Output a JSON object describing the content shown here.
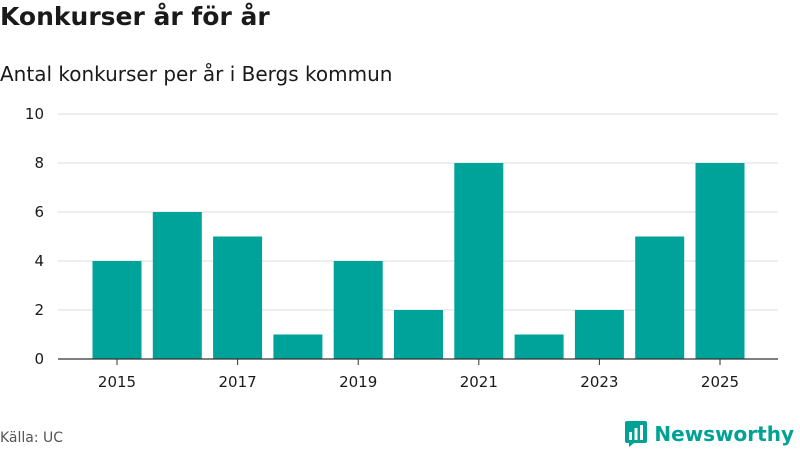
{
  "title": "Konkurser år för år",
  "subtitle": "Antal konkurser per år i Bergs kommun",
  "source": "Källa: UC",
  "brand": {
    "name": "Newsworthy",
    "icon": "newsworthy-logo-icon",
    "color": "#00a295"
  },
  "chart_data": {
    "type": "bar",
    "categories": [
      "2015",
      "2016",
      "2017",
      "2018",
      "2019",
      "2020",
      "2021",
      "2022",
      "2023",
      "2024",
      "2025"
    ],
    "values": [
      4,
      6,
      5,
      1,
      4,
      2,
      8,
      1,
      2,
      5,
      8
    ],
    "x_tick_labels": [
      "2015",
      "2017",
      "2019",
      "2021",
      "2023",
      "2025"
    ],
    "y_ticks": [
      0,
      2,
      4,
      6,
      8,
      10
    ],
    "ylim": [
      0,
      10
    ],
    "xlabel": "",
    "ylabel": "",
    "bar_color": "#00a39a",
    "grid": true,
    "legend": "none"
  }
}
